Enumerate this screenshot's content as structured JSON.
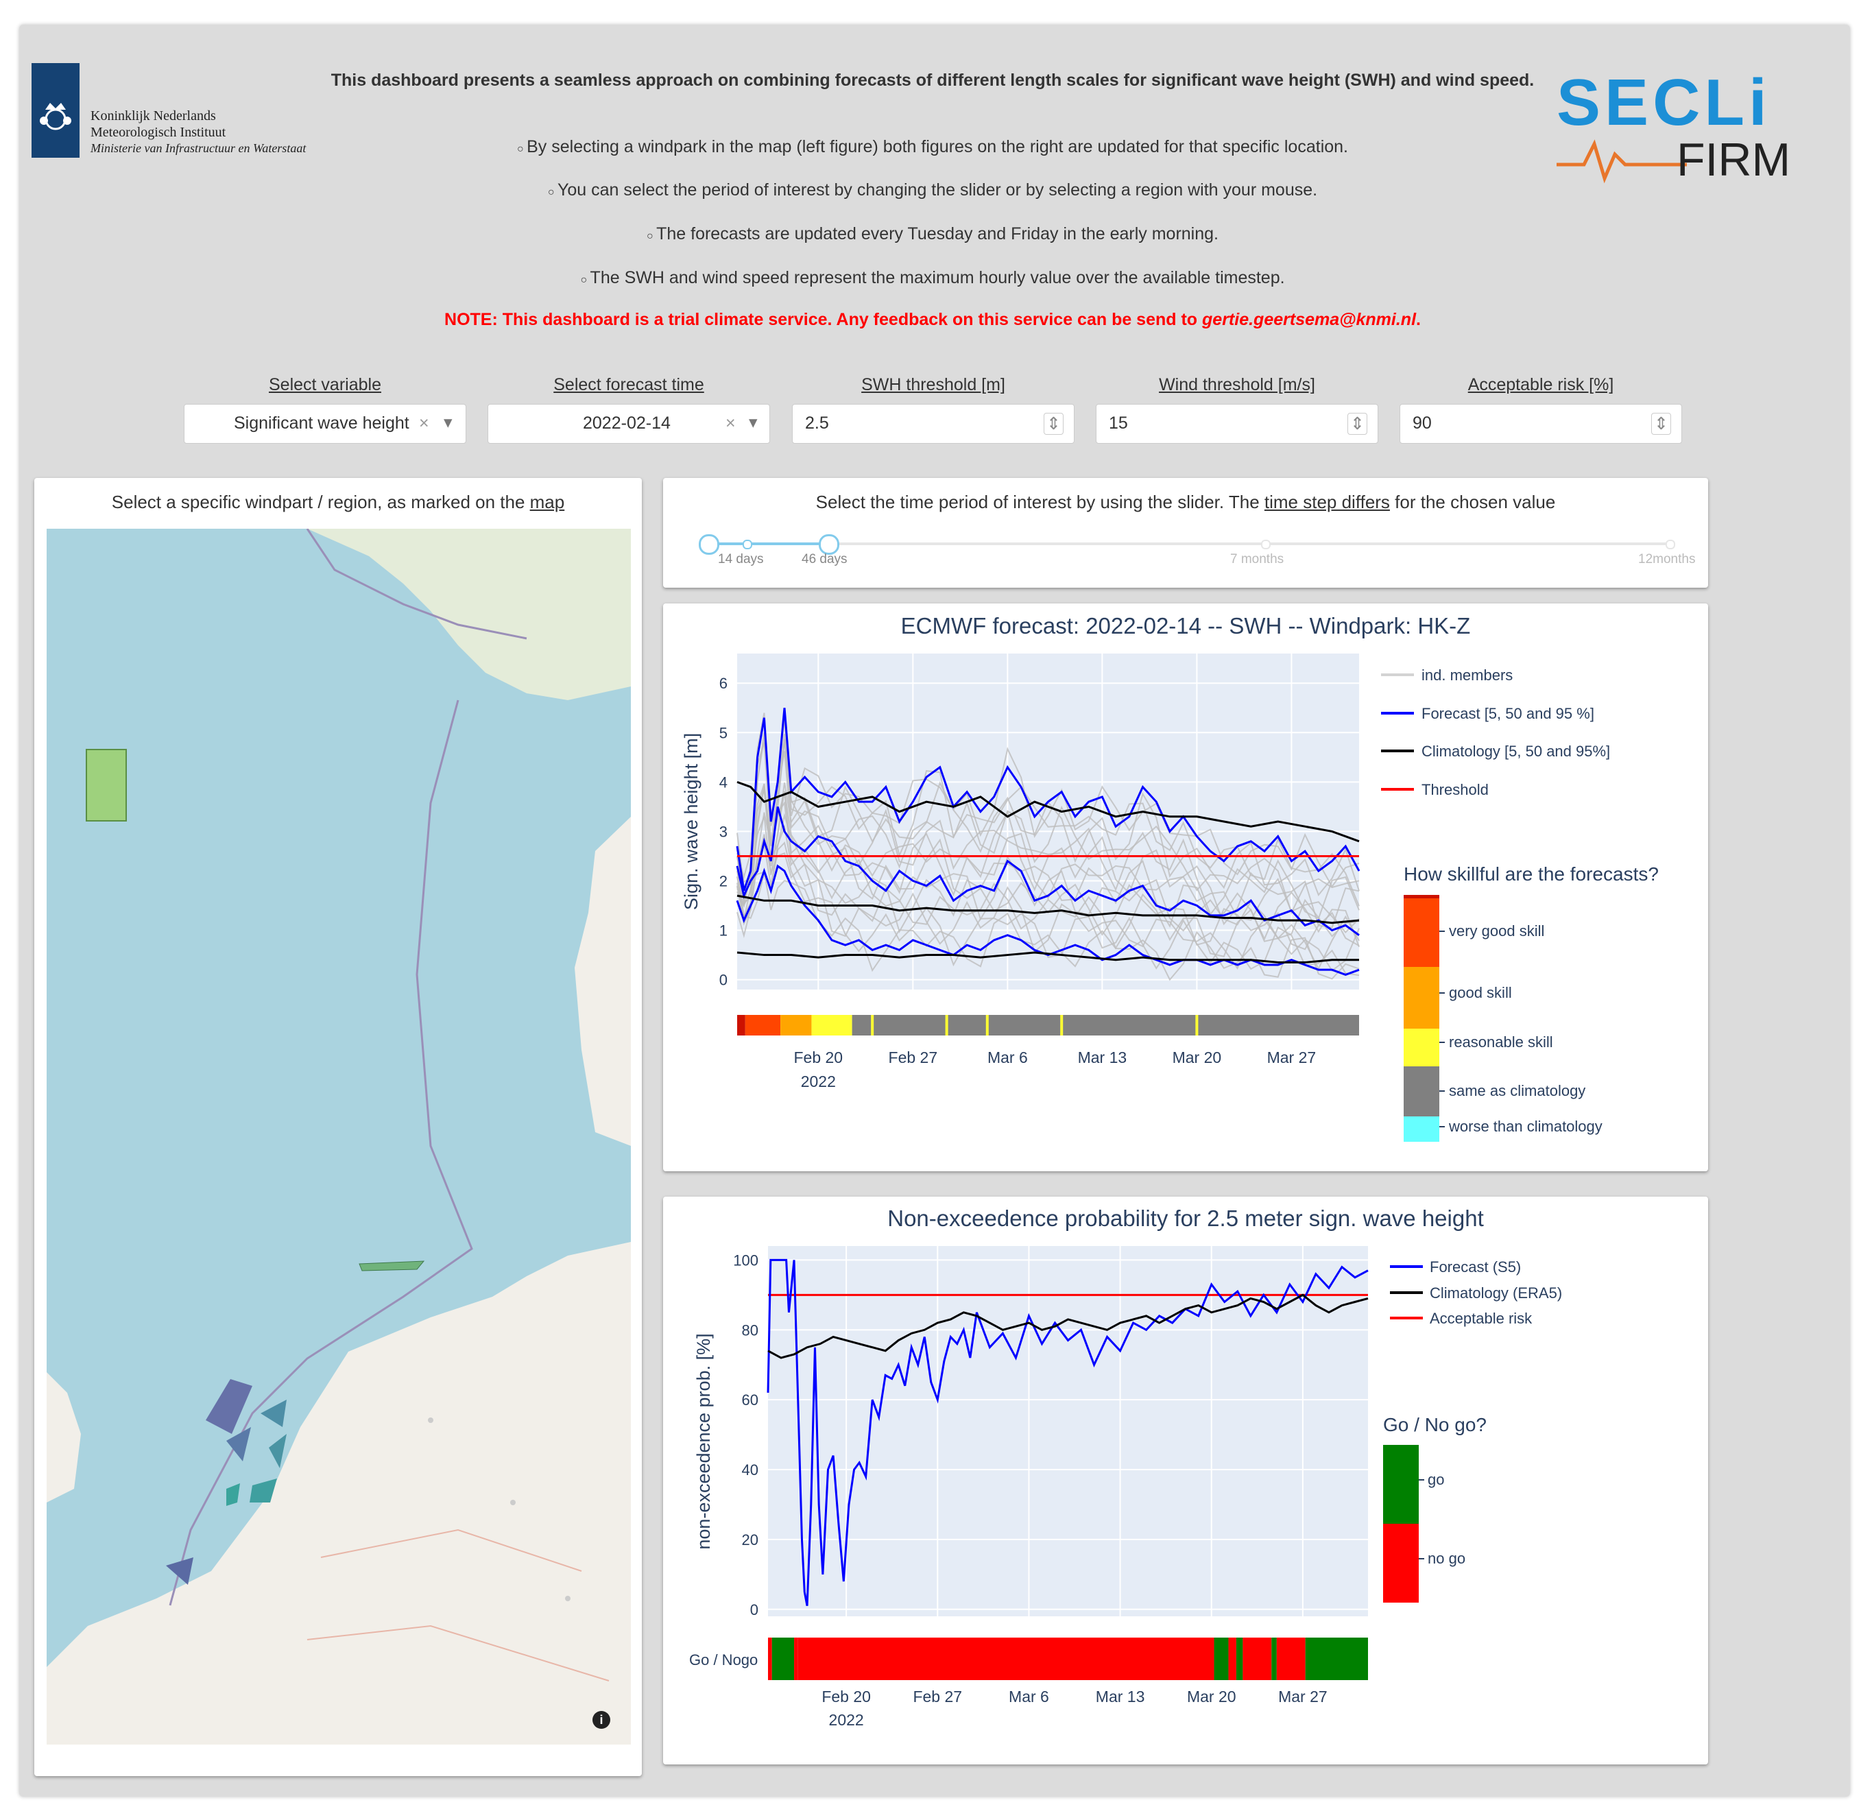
{
  "header": {
    "logo_left_lines": [
      "Koninklijk Nederlands",
      "Meteorologisch Instituut",
      "Ministerie van Infrastructuur en Waterstaat"
    ],
    "intro_bold": "This dashboard presents a seamless approach on combining forecasts of different length scales for significant wave height (SWH) and wind speed.",
    "bullets": [
      "By selecting a windpark in the map (left figure) both figures on the right are updated for that specific location.",
      "You can select the period of interest by changing the slider or by selecting a region with your mouse.",
      "The forecasts are updated every Tuesday and Friday in the early morning.",
      "The SWH and wind speed represent the maximum hourly value over the available timestep."
    ],
    "note_prefix": "NOTE: This dashboard is a trial climate service. Any feedback on this service can be send to ",
    "note_email": "gertie.geertsema@knmi.nl",
    "note_suffix": ".",
    "logo_right_top": "SECLi",
    "logo_right_bottom": "FIRM"
  },
  "controls": {
    "variable_label": "Select variable",
    "variable_value": "Significant wave height",
    "forecast_label": "Select forecast time",
    "forecast_value": "2022-02-14",
    "swh_label": "SWH threshold [m]",
    "swh_value": "2.5",
    "wind_label": "Wind threshold [m/s]",
    "wind_value": "15",
    "risk_label": "Acceptable risk [%]",
    "risk_value": "90",
    "clear_glyph": "×",
    "dropdown_glyph": "▾",
    "spinner_glyph": "⇕"
  },
  "map": {
    "title_prefix": "Select a specific windpart / region, as marked on the ",
    "title_link": "map",
    "info_glyph": "i"
  },
  "slider": {
    "title_prefix": "Select the time period of interest by using the slider. The ",
    "title_link": "time step differs",
    "title_suffix": " for the chosen value",
    "marks": [
      "14 days",
      "46 days",
      "7 months",
      "12months"
    ],
    "selected_fraction": 0.125
  },
  "chart_data": [
    {
      "type": "line",
      "title": "ECMWF forecast: 2022-02-14 -- SWH -- Windpark: HK-Z",
      "ylabel": "Sign. wave height [m]",
      "ylim": [
        -0.2,
        6.6
      ],
      "yticks": [
        0,
        1,
        2,
        3,
        4,
        5,
        6
      ],
      "x_range_days": [
        0,
        50
      ],
      "x_ticks": [
        {
          "day": 6,
          "label": "Feb 20",
          "sub": "2022"
        },
        {
          "day": 13,
          "label": "Feb 27"
        },
        {
          "day": 20,
          "label": "Mar 6"
        },
        {
          "day": 27,
          "label": "Mar 13"
        },
        {
          "day": 34,
          "label": "Mar 20"
        },
        {
          "day": 41,
          "label": "Mar 27"
        }
      ],
      "threshold": 2.5,
      "legend": [
        "ind. members",
        "Forecast [5, 50 and 95 %]",
        "Climatology [5, 50 and 95%]",
        "Threshold"
      ],
      "series": [
        {
          "name": "Forecast 95%",
          "x": [
            0,
            0.5,
            1,
            1.5,
            2,
            2.5,
            3,
            3.5,
            4,
            5,
            6,
            7,
            8,
            9,
            10,
            11,
            12,
            13,
            14,
            15,
            16,
            17,
            18,
            19,
            20,
            21,
            22,
            23,
            24,
            25,
            26,
            27,
            28,
            29,
            30,
            31,
            32,
            33,
            34,
            35,
            36,
            37,
            38,
            39,
            40,
            41,
            42,
            43,
            44,
            45,
            46
          ],
          "y": [
            2.7,
            1.8,
            2.2,
            4.5,
            5.3,
            3.2,
            4.0,
            5.5,
            3.8,
            4.1,
            3.8,
            3.7,
            4.0,
            3.6,
            3.6,
            3.9,
            3.2,
            3.6,
            4.1,
            4.3,
            3.5,
            3.8,
            3.4,
            3.7,
            4.3,
            3.9,
            3.3,
            3.6,
            3.8,
            3.3,
            3.6,
            3.7,
            3.1,
            3.3,
            3.9,
            3.6,
            3.0,
            3.3,
            2.9,
            2.6,
            2.4,
            2.7,
            2.8,
            2.6,
            2.9,
            2.4,
            2.6,
            2.2,
            2.4,
            2.7,
            2.2
          ]
        },
        {
          "name": "Forecast 50%",
          "x": [
            0,
            0.5,
            1,
            1.5,
            2,
            2.5,
            3,
            3.5,
            4,
            5,
            6,
            7,
            8,
            9,
            10,
            11,
            12,
            13,
            14,
            15,
            16,
            17,
            18,
            19,
            20,
            21,
            22,
            23,
            24,
            25,
            26,
            27,
            28,
            29,
            30,
            31,
            32,
            33,
            34,
            35,
            36,
            37,
            38,
            39,
            40,
            41,
            42,
            43,
            44,
            45,
            46
          ],
          "y": [
            2.3,
            1.7,
            2.0,
            2.2,
            2.8,
            2.4,
            3.5,
            3.0,
            2.8,
            2.6,
            2.9,
            2.8,
            2.4,
            2.3,
            2.0,
            1.8,
            2.2,
            2.0,
            1.9,
            2.1,
            1.6,
            1.8,
            1.9,
            1.8,
            2.4,
            2.2,
            1.6,
            1.7,
            1.9,
            1.6,
            1.8,
            1.7,
            1.6,
            1.8,
            1.9,
            1.5,
            1.4,
            1.6,
            1.5,
            1.3,
            1.3,
            1.4,
            1.6,
            1.2,
            1.3,
            1.4,
            1.1,
            1.2,
            1.0,
            1.1,
            0.9
          ]
        },
        {
          "name": "Forecast 5%",
          "x": [
            0,
            0.5,
            1,
            1.5,
            2,
            2.5,
            3,
            3.5,
            4,
            5,
            6,
            7,
            8,
            9,
            10,
            11,
            12,
            13,
            14,
            15,
            16,
            17,
            18,
            19,
            20,
            21,
            22,
            23,
            24,
            25,
            26,
            27,
            28,
            29,
            30,
            31,
            32,
            33,
            34,
            35,
            36,
            37,
            38,
            39,
            40,
            41,
            42,
            43,
            44,
            45,
            46
          ],
          "y": [
            1.6,
            1.2,
            1.5,
            1.8,
            2.2,
            1.8,
            2.3,
            2.2,
            1.9,
            1.5,
            1.2,
            0.8,
            0.7,
            0.8,
            0.6,
            0.7,
            0.6,
            0.8,
            0.7,
            0.6,
            0.5,
            0.7,
            0.6,
            0.8,
            0.9,
            0.8,
            0.6,
            0.5,
            0.6,
            0.7,
            0.6,
            0.4,
            0.5,
            0.7,
            0.5,
            0.4,
            0.3,
            0.4,
            0.4,
            0.3,
            0.4,
            0.3,
            0.4,
            0.3,
            0.3,
            0.4,
            0.3,
            0.2,
            0.2,
            0.1,
            0.2
          ]
        },
        {
          "name": "Climatology 95%",
          "x": [
            0,
            1,
            2,
            4,
            6,
            8,
            10,
            12,
            14,
            16,
            18,
            20,
            22,
            24,
            26,
            28,
            30,
            32,
            34,
            36,
            38,
            40,
            42,
            44,
            46
          ],
          "y": [
            4.0,
            3.9,
            3.6,
            3.8,
            3.5,
            3.6,
            3.7,
            3.4,
            3.6,
            3.5,
            3.7,
            3.3,
            3.6,
            3.4,
            3.5,
            3.3,
            3.4,
            3.3,
            3.3,
            3.2,
            3.1,
            3.2,
            3.1,
            3.0,
            2.8
          ]
        },
        {
          "name": "Climatology 50%",
          "x": [
            0,
            2,
            4,
            6,
            8,
            10,
            12,
            14,
            16,
            18,
            20,
            22,
            24,
            26,
            28,
            30,
            32,
            34,
            36,
            38,
            40,
            42,
            44,
            46
          ],
          "y": [
            1.7,
            1.6,
            1.6,
            1.5,
            1.5,
            1.5,
            1.4,
            1.45,
            1.4,
            1.4,
            1.4,
            1.35,
            1.4,
            1.3,
            1.35,
            1.3,
            1.3,
            1.3,
            1.25,
            1.25,
            1.2,
            1.2,
            1.15,
            1.2
          ]
        },
        {
          "name": "Climatology 5%",
          "x": [
            0,
            2,
            4,
            6,
            8,
            10,
            12,
            14,
            16,
            18,
            20,
            22,
            24,
            26,
            28,
            30,
            32,
            34,
            36,
            38,
            40,
            42,
            44,
            46
          ],
          "y": [
            0.55,
            0.5,
            0.5,
            0.45,
            0.5,
            0.5,
            0.45,
            0.5,
            0.5,
            0.45,
            0.5,
            0.55,
            0.5,
            0.45,
            0.4,
            0.45,
            0.4,
            0.4,
            0.4,
            0.4,
            0.35,
            0.35,
            0.4,
            0.4
          ]
        }
      ],
      "skill_legend_title": "How skillful are the forecasts?",
      "skill_levels": [
        {
          "label": "very good skill",
          "color": "#ff4500"
        },
        {
          "label": "good skill",
          "color": "#ffa500"
        },
        {
          "label": "reasonable skill",
          "color": "#ffff33"
        },
        {
          "label": "same as climatology",
          "color": "#808080"
        },
        {
          "label": "worse than climatology",
          "color": "#66ffff"
        }
      ],
      "skill_bar": [
        {
          "start": 0,
          "end": 0.6,
          "color": "#cc1100"
        },
        {
          "start": 0.6,
          "end": 3.2,
          "color": "#ff4500"
        },
        {
          "start": 3.2,
          "end": 5.5,
          "color": "#ffa500"
        },
        {
          "start": 5.5,
          "end": 8.5,
          "color": "#ffff33"
        },
        {
          "start": 8.5,
          "end": 46,
          "color": "#808080"
        }
      ],
      "skill_bar_marks": [
        10,
        15.5,
        18.5,
        24,
        34
      ]
    },
    {
      "type": "line",
      "title": "Non-exceedence probability for 2.5 meter sign. wave height",
      "ylabel": "non-exceedence prob. [%]",
      "ylim": [
        -2,
        104
      ],
      "yticks": [
        0,
        20,
        40,
        60,
        80,
        100
      ],
      "x_range_days": [
        0,
        46
      ],
      "x_ticks": [
        {
          "day": 6,
          "label": "Feb 20",
          "sub": "2022"
        },
        {
          "day": 13,
          "label": "Feb 27"
        },
        {
          "day": 20,
          "label": "Mar 6"
        },
        {
          "day": 27,
          "label": "Mar 13"
        },
        {
          "day": 34,
          "label": "Mar 20"
        },
        {
          "day": 41,
          "label": "Mar 27"
        }
      ],
      "acceptable_risk": 90,
      "legend": [
        "Forecast (S5)",
        "Climatology (ERA5)",
        "Acceptable risk"
      ],
      "series": [
        {
          "name": "Forecast (S5)",
          "x": [
            0,
            0.2,
            0.6,
            1,
            1.4,
            1.6,
            2.0,
            2.3,
            2.6,
            2.8,
            3.0,
            3.3,
            3.6,
            3.9,
            4.2,
            4.6,
            5.0,
            5.4,
            5.8,
            6.2,
            6.6,
            7.0,
            7.5,
            8.0,
            8.5,
            9.0,
            9.5,
            10,
            10.5,
            11,
            11.5,
            12,
            12.5,
            13,
            13.5,
            14,
            14.5,
            15,
            15.5,
            16,
            17,
            18,
            19,
            20,
            21,
            22,
            23,
            24,
            25,
            26,
            27,
            28,
            29,
            30,
            31,
            32,
            33,
            34,
            35,
            36,
            37,
            38,
            39,
            40,
            41,
            42,
            43,
            44,
            45,
            46
          ],
          "y": [
            62,
            100,
            100,
            100,
            100,
            85,
            100,
            60,
            20,
            5,
            1,
            30,
            75,
            30,
            10,
            40,
            44,
            25,
            8,
            30,
            40,
            42,
            38,
            60,
            55,
            67,
            66,
            70,
            64,
            75,
            70,
            78,
            65,
            60,
            71,
            78,
            76,
            80,
            72,
            85,
            75,
            79,
            72,
            84,
            76,
            82,
            77,
            80,
            70,
            78,
            74,
            82,
            80,
            84,
            82,
            86,
            84,
            93,
            88,
            91,
            84,
            90,
            85,
            93,
            88,
            96,
            92,
            98,
            95,
            97
          ]
        },
        {
          "name": "Climatology (ERA5)",
          "x": [
            0,
            1,
            2,
            3,
            4,
            5,
            6,
            7,
            8,
            9,
            10,
            11,
            12,
            13,
            14,
            15,
            16,
            17,
            18,
            19,
            20,
            21,
            22,
            23,
            24,
            25,
            26,
            27,
            28,
            29,
            30,
            31,
            32,
            33,
            34,
            35,
            36,
            37,
            38,
            39,
            40,
            41,
            42,
            43,
            44,
            45,
            46
          ],
          "y": [
            74,
            72,
            73,
            75,
            76,
            78,
            77,
            76,
            75,
            74,
            77,
            79,
            80,
            82,
            83,
            85,
            84,
            82,
            80,
            81,
            82,
            80,
            81,
            83,
            82,
            81,
            80,
            82,
            83,
            84,
            82,
            84,
            86,
            87,
            85,
            86,
            87,
            89,
            88,
            86,
            88,
            90,
            87,
            85,
            87,
            88,
            89
          ]
        }
      ],
      "gonogo_legend_title": "Go / No go?",
      "gonogo_levels": [
        {
          "label": "go",
          "color": "#008000"
        },
        {
          "label": "no go",
          "color": "#ff0000"
        }
      ],
      "gonogo_label": "Go / Nogo",
      "gonogo_bar": [
        {
          "start": 0,
          "end": 0.3,
          "color": "#ff0000"
        },
        {
          "start": 0.3,
          "end": 2.0,
          "color": "#008000"
        },
        {
          "start": 2.0,
          "end": 2.3,
          "color": "#ff0000"
        },
        {
          "start": 2.3,
          "end": 34.2,
          "color": "#ff0000"
        },
        {
          "start": 34.2,
          "end": 35.3,
          "color": "#008000"
        },
        {
          "start": 35.3,
          "end": 35.9,
          "color": "#ff0000"
        },
        {
          "start": 35.9,
          "end": 36.4,
          "color": "#008000"
        },
        {
          "start": 36.4,
          "end": 38.6,
          "color": "#ff0000"
        },
        {
          "start": 38.6,
          "end": 39.0,
          "color": "#008000"
        },
        {
          "start": 39.0,
          "end": 41.2,
          "color": "#ff0000"
        },
        {
          "start": 41.2,
          "end": 46,
          "color": "#008000"
        }
      ]
    }
  ]
}
